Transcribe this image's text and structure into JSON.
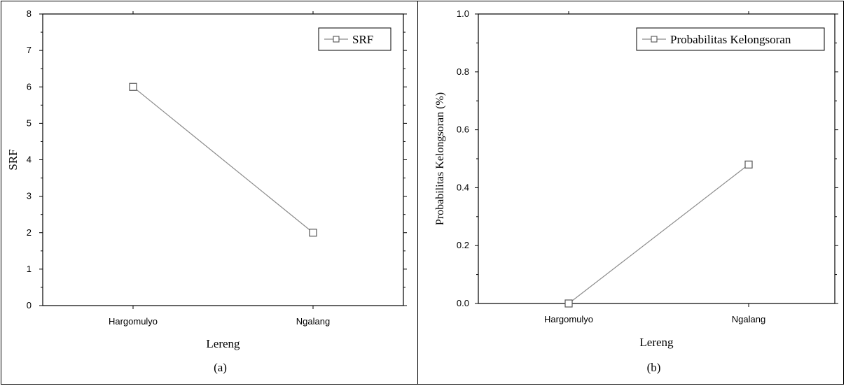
{
  "chart_data": [
    {
      "type": "line",
      "caption": "(a)",
      "xlabel": "Lereng",
      "ylabel": "SRF",
      "categories": [
        "Hargomulyo",
        "Ngalang"
      ],
      "series": [
        {
          "name": "SRF",
          "values": [
            6,
            2
          ]
        }
      ],
      "ylim": [
        0,
        8
      ],
      "yticks": [
        "0",
        "1",
        "2",
        "3",
        "4",
        "5",
        "6",
        "7",
        "8"
      ],
      "legend": "top-right",
      "grid": false,
      "marker": "open-square"
    },
    {
      "type": "line",
      "caption": "(b)",
      "xlabel": "Lereng",
      "ylabel": "Probabilitas Kelongsoran (%)",
      "categories": [
        "Hargomulyo",
        "Ngalang"
      ],
      "series": [
        {
          "name": "Probabilitas Kelongsoran",
          "values": [
            0.0,
            0.48
          ]
        }
      ],
      "ylim": [
        0,
        1.0
      ],
      "yticks": [
        "0.0",
        "0.2",
        "0.4",
        "0.6",
        "0.8",
        "1.0"
      ],
      "legend": "top-right",
      "grid": false,
      "marker": "open-square"
    }
  ],
  "colors": {
    "line": "#8c8c8c",
    "marker": "#555555",
    "axis": "#000000"
  }
}
